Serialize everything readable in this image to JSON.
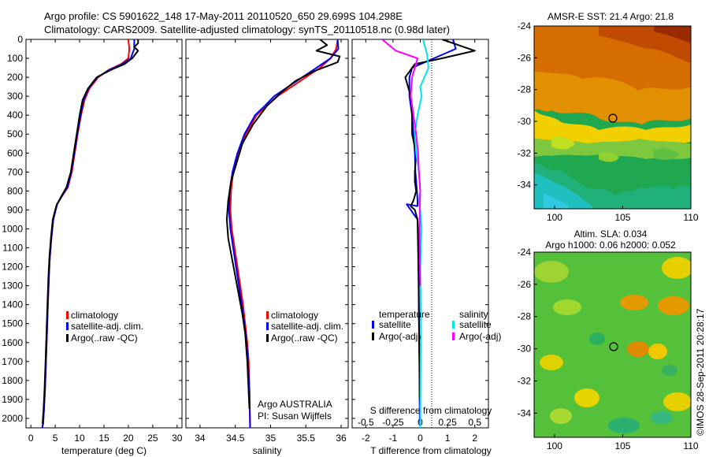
{
  "header": {
    "line1": "Argo profile: CS 5901622_148 17-May-2011 20110520_650 29.699S 104.298E",
    "line2": "Climatology: CARS2009. Satellite-adjusted climatology: synTS_20110518.nc (0.98d later)"
  },
  "chart_data": [
    {
      "type": "line",
      "xlabel": "temperature (deg C)",
      "ylabel": "",
      "xlim": [
        -1,
        31
      ],
      "ylim": [
        2050,
        0
      ],
      "xticks": [
        0,
        5,
        10,
        15,
        20,
        25,
        30
      ],
      "yticks": [
        0,
        100,
        200,
        300,
        400,
        500,
        600,
        700,
        800,
        900,
        1000,
        1100,
        1200,
        1300,
        1400,
        1500,
        1600,
        1700,
        1800,
        1900,
        2000
      ],
      "legend": [
        "climatology",
        "satellite-adj. clim.",
        "Argo(..raw -QC)"
      ],
      "series": [
        {
          "name": "climatology",
          "color": "#ff0000",
          "x": [
            20.0,
            20.2,
            20.0,
            18.5,
            16.0,
            13.8,
            12.0,
            11.0,
            10.3,
            9.6,
            9.0,
            8.4,
            7.6,
            6.6,
            5.3,
            4.6,
            4.2,
            3.9,
            3.7,
            3.5,
            3.3,
            3.1,
            2.9,
            2.7,
            2.5,
            2.3
          ],
          "y": [
            0,
            50,
            100,
            130,
            160,
            200,
            260,
            320,
            400,
            500,
            600,
            700,
            780,
            820,
            870,
            950,
            1050,
            1150,
            1250,
            1400,
            1550,
            1700,
            1850,
            1950,
            2030,
            2050
          ]
        },
        {
          "name": "satellite-adj. clim.",
          "color": "#0000ff",
          "x": [
            21.2,
            21.2,
            20.5,
            18.8,
            16.2,
            13.6,
            11.8,
            10.8,
            10.2,
            9.5,
            8.9,
            8.3,
            7.5,
            6.5,
            5.4,
            4.6,
            4.2,
            3.9,
            3.7,
            3.5,
            3.3,
            3.1,
            2.9,
            2.7,
            2.5,
            2.3
          ],
          "y": [
            0,
            50,
            100,
            130,
            160,
            200,
            260,
            320,
            400,
            500,
            600,
            700,
            780,
            820,
            870,
            950,
            1050,
            1150,
            1250,
            1400,
            1550,
            1700,
            1850,
            1950,
            2030,
            2050
          ]
        },
        {
          "name": "Argo(..raw -QC)",
          "color": "#000000",
          "x": [
            22.0,
            22.0,
            21.2,
            22.0,
            20.8,
            19.2,
            16.5,
            13.5,
            11.7,
            10.6,
            10.0,
            9.4,
            8.8,
            8.2,
            7.3,
            6.2,
            5.2,
            4.5,
            4.1,
            3.8,
            3.6,
            3.4,
            3.2,
            3.0,
            2.8,
            2.6,
            2.4
          ],
          "y": [
            0,
            20,
            40,
            60,
            100,
            130,
            160,
            200,
            260,
            320,
            400,
            500,
            600,
            700,
            780,
            830,
            880,
            950,
            1050,
            1150,
            1250,
            1400,
            1550,
            1700,
            1850,
            1950,
            2030
          ]
        }
      ]
    },
    {
      "type": "line",
      "xlabel": "salinity",
      "ylabel": "",
      "xlim": [
        33.8,
        36.1
      ],
      "ylim": [
        2050,
        0
      ],
      "xticks": [
        34,
        34.5,
        35,
        35.5,
        36
      ],
      "legend": [
        "climatology",
        "satellite-adj. clim.",
        "Argo(..raw -QC)"
      ],
      "annotations": [
        "Argo AUSTRALIA",
        "PI: Susan Wijffels"
      ],
      "series": [
        {
          "name": "climatology",
          "color": "#ff0000",
          "x": [
            35.95,
            35.93,
            35.85,
            35.7,
            35.5,
            35.3,
            35.1,
            34.95,
            34.8,
            34.65,
            34.55,
            34.47,
            34.44,
            34.43,
            34.45,
            34.49,
            34.53,
            34.57,
            34.61,
            34.64,
            34.67,
            34.69,
            34.7,
            34.71
          ],
          "y": [
            0,
            50,
            100,
            150,
            200,
            250,
            300,
            350,
            400,
            500,
            600,
            700,
            800,
            900,
            1000,
            1100,
            1200,
            1300,
            1400,
            1500,
            1600,
            1700,
            1850,
            2050
          ]
        },
        {
          "name": "satellite-adj. clim.",
          "color": "#0000ff",
          "x": [
            35.95,
            35.96,
            35.85,
            35.65,
            35.45,
            35.25,
            35.05,
            34.92,
            34.78,
            34.63,
            34.53,
            34.46,
            34.42,
            34.41,
            34.43,
            34.47,
            34.51,
            34.55,
            34.59,
            34.63,
            34.66,
            34.68,
            34.7,
            34.71
          ],
          "y": [
            0,
            50,
            100,
            150,
            200,
            250,
            300,
            350,
            400,
            500,
            600,
            700,
            800,
            900,
            1000,
            1100,
            1200,
            1300,
            1400,
            1500,
            1600,
            1700,
            1850,
            2050
          ]
        },
        {
          "name": "Argo(..raw -QC)",
          "color": "#000000",
          "x": [
            35.7,
            35.8,
            35.65,
            35.98,
            35.95,
            35.6,
            35.35,
            35.15,
            34.95,
            34.75,
            34.6,
            34.52,
            34.44,
            34.4,
            34.38,
            34.4,
            34.45,
            34.5,
            34.55,
            34.6,
            34.64,
            34.67,
            34.7
          ],
          "y": [
            0,
            30,
            60,
            90,
            120,
            170,
            220,
            280,
            350,
            450,
            550,
            650,
            750,
            850,
            950,
            1050,
            1150,
            1250,
            1350,
            1450,
            1550,
            1700,
            1950
          ]
        }
      ]
    },
    {
      "type": "line",
      "xlabel": "T difference from climatology",
      "top_label": "S difference from climatology",
      "xlim": [
        -2.5,
        2.5
      ],
      "ylim": [
        2050,
        0
      ],
      "xticks": [
        -2,
        -1,
        0,
        1,
        2
      ],
      "top_xticks_labels": [
        "-0.5",
        "-0.25",
        "0",
        "0.25",
        "0.5"
      ],
      "legend_groups": [
        {
          "title": "temperature",
          "items": [
            {
              "name": "satellite",
              "color": "#0000ff"
            },
            {
              "name": "Argo(-adj)",
              "color": "#000000"
            }
          ]
        },
        {
          "title": "salinity",
          "items": [
            {
              "name": "satellite",
              "color": "#00e5ee"
            },
            {
              "name": "Argo(-adj)",
              "color": "#ff00ff"
            }
          ]
        }
      ],
      "series": [
        {
          "name": "temperature satellite",
          "color": "#0000ff",
          "x": [
            1.2,
            1.3,
            0.5,
            -0.3,
            -0.4,
            -0.4,
            -0.3,
            -0.25,
            -0.2,
            -0.18,
            -0.15,
            -0.12,
            -0.1,
            -0.1,
            -0.5,
            -0.1,
            -0.08,
            -0.06,
            -0.05,
            -0.04,
            -0.03,
            -0.02,
            0.0
          ],
          "y": [
            0,
            50,
            100,
            150,
            200,
            300,
            400,
            500,
            600,
            700,
            750,
            800,
            850,
            880,
            870,
            950,
            1000,
            1200,
            1400,
            1600,
            1800,
            2000,
            2050
          ]
        },
        {
          "name": "temperature Argo(-adj)",
          "color": "#000000",
          "x": [
            0.8,
            2.0,
            0.8,
            -0.2,
            -0.55,
            -0.35,
            -0.3,
            -0.3,
            -0.15,
            -0.2,
            -0.2,
            -0.15,
            -0.25,
            -0.35,
            -0.2,
            -0.1,
            -0.08,
            -0.06,
            -0.05,
            -0.03,
            -0.02
          ],
          "y": [
            0,
            60,
            100,
            130,
            200,
            300,
            400,
            500,
            600,
            700,
            750,
            800,
            850,
            880,
            900,
            950,
            1100,
            1300,
            1500,
            1700,
            1900
          ]
        },
        {
          "name": "salinity satellite",
          "color": "#00e5ee",
          "x": [
            0.1,
            0.25,
            0.3,
            0.0,
            0.05,
            -0.1,
            -0.2,
            -0.15,
            -0.05,
            0.0,
            -0.05,
            0.0,
            0.05,
            0.0,
            0.02,
            0.01,
            0.0
          ],
          "y": [
            0,
            80,
            150,
            250,
            300,
            400,
            500,
            600,
            700,
            800,
            850,
            900,
            1000,
            1200,
            1500,
            1800,
            2050
          ]
        },
        {
          "name": "salinity Argo(-adj)",
          "color": "#ff00ff",
          "x": [
            -1.4,
            -0.9,
            -0.1,
            -0.3,
            -0.35,
            -0.25,
            -0.15,
            -0.08,
            -0.05,
            0.0,
            -0.02,
            -0.02,
            0.0
          ],
          "y": [
            0,
            60,
            100,
            200,
            300,
            400,
            500,
            600,
            700,
            800,
            900,
            1100,
            1300
          ]
        }
      ]
    },
    {
      "type": "heatmap",
      "title": "AMSR-E SST: 21.4  Argo: 21.8",
      "xlim": [
        98.5,
        110
      ],
      "ylim": [
        -35.5,
        -24
      ],
      "xticks": [
        100,
        105,
        110
      ],
      "yticks": [
        -24,
        -26,
        -28,
        -30,
        -32,
        -34
      ],
      "marker": {
        "lon": 104.298,
        "lat": -29.699
      }
    },
    {
      "type": "heatmap",
      "title_line1": "Altim. SLA: 0.034",
      "title_line2": "Argo h1000: 0.06 h2000: 0.052",
      "xlim": [
        98.5,
        110
      ],
      "ylim": [
        -35.5,
        -24
      ],
      "xticks": [
        100,
        105,
        110
      ],
      "yticks": [
        -24,
        -26,
        -28,
        -30,
        -32,
        -34
      ],
      "marker": {
        "lon": 104.298,
        "lat": -29.699
      }
    }
  ],
  "credit": "©IMOS 28-Sep-2011 20:28:17"
}
